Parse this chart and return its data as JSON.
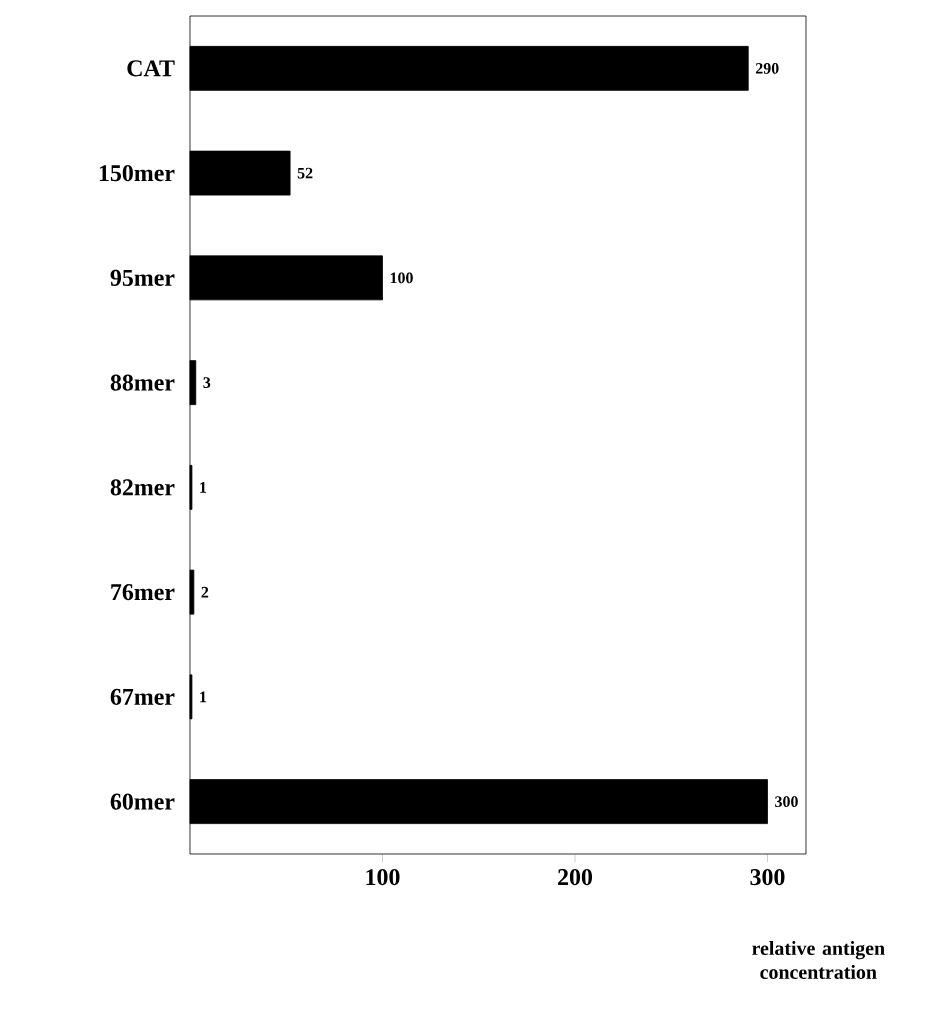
{
  "chart_data": {
    "type": "bar",
    "orientation": "horizontal",
    "xlabel": "relative antigen concentration",
    "categories": [
      "CAT",
      "150mer",
      "95mer",
      "88mer",
      "82mer",
      "76mer",
      "67mer",
      "60mer"
    ],
    "values": [
      290,
      52,
      100,
      3,
      1,
      2,
      1,
      300
    ],
    "color": "#000000",
    "xlim": [
      0,
      320
    ],
    "xticks": [
      100,
      200,
      300
    ],
    "data_labels": true
  }
}
